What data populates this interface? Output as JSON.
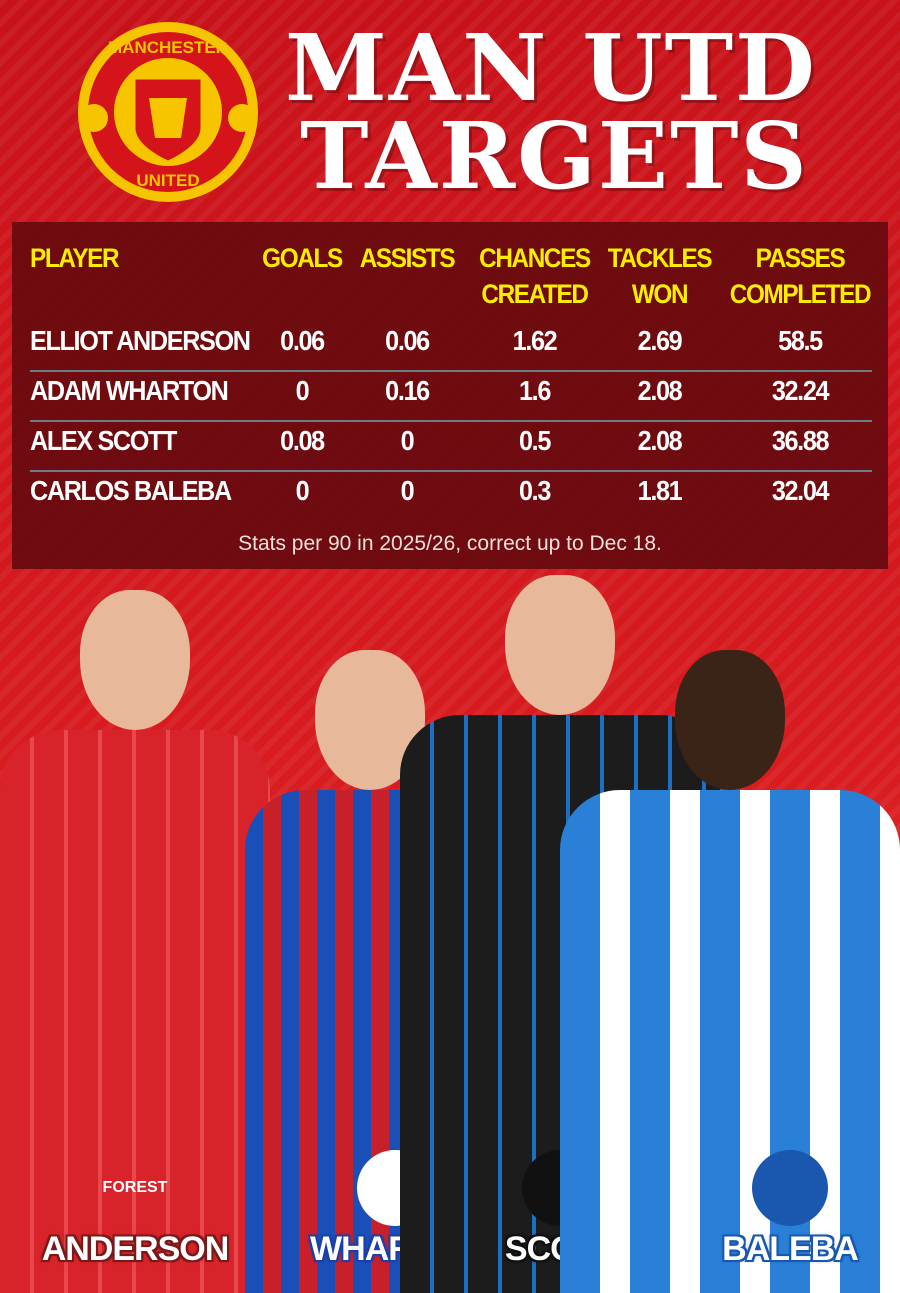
{
  "header": {
    "title_line1": "MAN UTD",
    "title_line2": "TARGETS",
    "crest": {
      "top_text": "MANCHESTER",
      "bottom_text": "UNITED"
    }
  },
  "table": {
    "headers": [
      [
        "PLAYER",
        ""
      ],
      [
        "GOALS",
        ""
      ],
      [
        "ASSISTS",
        ""
      ],
      [
        "CHANCES",
        "CREATED"
      ],
      [
        "TACKLES",
        "WON"
      ],
      [
        "PASSES",
        "COMPLETED"
      ]
    ],
    "rows": [
      [
        "ELLIOT ANDERSON",
        "0.06",
        "0.06",
        "1.62",
        "2.69",
        "58.5"
      ],
      [
        "ADAM WHARTON",
        "0",
        "0.16",
        "1.6",
        "2.08",
        "32.24"
      ],
      [
        "ALEX SCOTT",
        "0.08",
        "0",
        "0.5",
        "2.08",
        "36.88"
      ],
      [
        "CARLOS BALEBA",
        "0",
        "0",
        "0.3",
        "1.81",
        "32.04"
      ]
    ],
    "footnote": "Stats per 90 in 2025/26, correct up to Dec 18."
  },
  "players": [
    {
      "label": "ANDERSON",
      "club_badge": "FOREST",
      "kit": "#d8232a",
      "label_shadow": "#7a1a1a"
    },
    {
      "label": "WHARTON",
      "club_badge": "crystal-palace-crest",
      "kit": "#1b4fb8",
      "label_shadow": "#1d3fa8"
    },
    {
      "label": "SCOTT",
      "club_badge": "bournemouth-crest",
      "kit": "#1c1c1c",
      "label_shadow": "#111111"
    },
    {
      "label": "BALEBA",
      "club_badge": "brighton-crest",
      "kit": "#2a7fd6",
      "label_shadow": "#1a58b0"
    }
  ],
  "colors": {
    "header_yellow": "#ffee00",
    "panel": "#640a0e",
    "background_red": "#d4141a"
  }
}
